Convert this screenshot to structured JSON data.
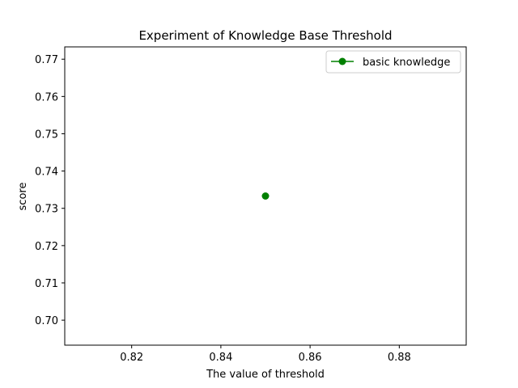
{
  "chart_data": {
    "type": "line",
    "title": "Experiment of Knowledge Base Threshold",
    "xlabel": "The value of threshold",
    "ylabel": "score",
    "xlim": [
      0.805,
      0.895
    ],
    "ylim": [
      0.6933,
      0.7733
    ],
    "xticks": [
      "0.82",
      "0.84",
      "0.86",
      "0.88"
    ],
    "yticks": [
      "0.70",
      "0.71",
      "0.72",
      "0.73",
      "0.74",
      "0.75",
      "0.76",
      "0.77"
    ],
    "grid": false,
    "legend_position": "top-right",
    "series": [
      {
        "name": "basic knowledge",
        "color": "#008000",
        "marker": "circle",
        "x": [
          0.85
        ],
        "y": [
          0.7333
        ]
      }
    ]
  }
}
